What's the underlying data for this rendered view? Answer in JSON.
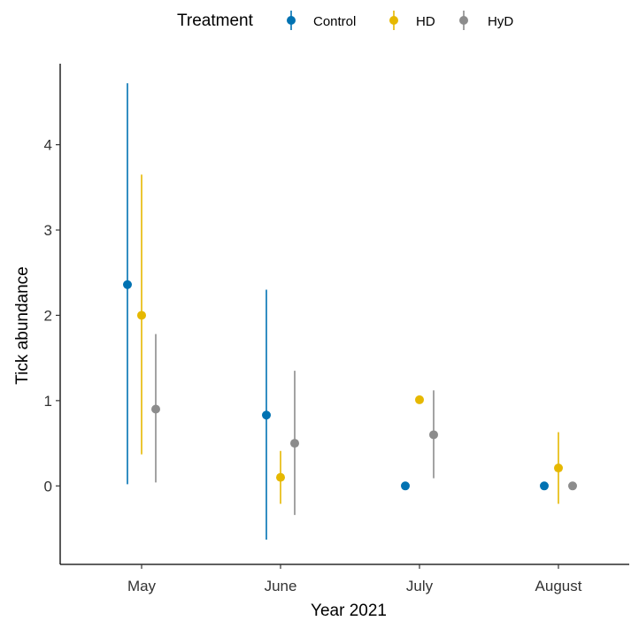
{
  "legend": {
    "title": "Treatment"
  },
  "colors": {
    "Control": "#0072B2",
    "HD": "#E6B800",
    "HyD": "#8C8C8C",
    "axis": "#000000"
  },
  "chart_data": {
    "type": "scatter",
    "subtype": "point-with-errorbars (dodged)",
    "categories": [
      "May",
      "June",
      "July",
      "August"
    ],
    "xlabel": "Year 2021",
    "ylabel": "Tick abundance",
    "ylim": [
      -0.92,
      4.95
    ],
    "yticks": [
      0,
      1,
      2,
      3,
      4
    ],
    "grid": false,
    "legend_position": "top",
    "series": [
      {
        "name": "Control",
        "values": [
          2.36,
          0.83,
          0.0,
          0.0
        ],
        "lower": [
          0.02,
          -0.63,
          0.0,
          0.0
        ],
        "upper": [
          4.72,
          2.3,
          0.0,
          0.0
        ]
      },
      {
        "name": "HD",
        "values": [
          2.0,
          0.1,
          1.01,
          0.21
        ],
        "lower": [
          0.37,
          -0.21,
          1.01,
          -0.21
        ],
        "upper": [
          3.65,
          0.41,
          1.01,
          0.63
        ]
      },
      {
        "name": "HyD",
        "values": [
          0.9,
          0.5,
          0.6,
          0.0
        ],
        "lower": [
          0.04,
          -0.34,
          0.09,
          0.0
        ],
        "upper": [
          1.78,
          1.35,
          1.12,
          0.0
        ]
      }
    ]
  }
}
